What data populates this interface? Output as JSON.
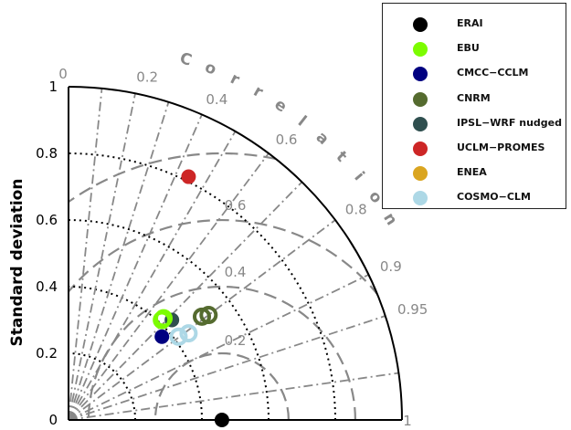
{
  "chart_data": {
    "type": "scatter",
    "subtype": "taylor-diagram",
    "ylabel": "Standard deviation",
    "arc_label": "Correlation",
    "radial_ticks": [
      "0",
      "0.2",
      "0.4",
      "0.6",
      "0.8",
      "1"
    ],
    "x_ticks": [
      "1"
    ],
    "correlation_ticks": [
      "0",
      "0.2",
      "0.4",
      "0.6",
      "0.8",
      "0.9",
      "0.95"
    ],
    "rmsd_ticks": [
      "0.2",
      "0.4",
      "0.6"
    ],
    "reference": {
      "name": "ERAI",
      "std": 0.46,
      "correlation": 1.0,
      "color": "#000000"
    },
    "legend": [
      {
        "name": "ERAI",
        "color": "#000000"
      },
      {
        "name": "EBU",
        "color": "#7CFC00"
      },
      {
        "name": "CMCC−CCLM",
        "color": "#000080"
      },
      {
        "name": "CNRM",
        "color": "#556B2F"
      },
      {
        "name": "IPSL−WRF nudged",
        "color": "#2F4F4F"
      },
      {
        "name": "UCLM−PROMES",
        "color": "#CD2626"
      },
      {
        "name": "ENEA",
        "color": "#DAA520"
      },
      {
        "name": "COSMO−CLM",
        "color": "#ADD8E6"
      }
    ],
    "series": [
      {
        "name": "CMCC−CCLM",
        "color": "#000080",
        "style": "filled",
        "points": [
          {
            "x": 0.28,
            "y": 0.25
          }
        ]
      },
      {
        "name": "IPSL−WRF nudged",
        "color": "#2F4F4F",
        "style": "filled",
        "points": [
          {
            "x": 0.31,
            "y": 0.3
          }
        ]
      },
      {
        "name": "EBU",
        "color": "#7CFC00",
        "style": "ring",
        "points": [
          {
            "x": 0.28,
            "y": 0.3
          },
          {
            "x": 0.285,
            "y": 0.305
          }
        ]
      },
      {
        "name": "CNRM",
        "color": "#556B2F",
        "style": "ring",
        "points": [
          {
            "x": 0.4,
            "y": 0.31
          },
          {
            "x": 0.42,
            "y": 0.315
          }
        ]
      },
      {
        "name": "COSMO−CLM",
        "color": "#ADD8E6",
        "style": "ring",
        "points": [
          {
            "x": 0.33,
            "y": 0.25
          },
          {
            "x": 0.36,
            "y": 0.26
          }
        ]
      },
      {
        "name": "UCLM−PROMES",
        "color": "#CD2626",
        "style": "filled",
        "points": [
          {
            "x": 0.36,
            "y": 0.73
          }
        ]
      }
    ],
    "xlim": [
      0,
      1
    ],
    "ylim": [
      0,
      1
    ]
  }
}
